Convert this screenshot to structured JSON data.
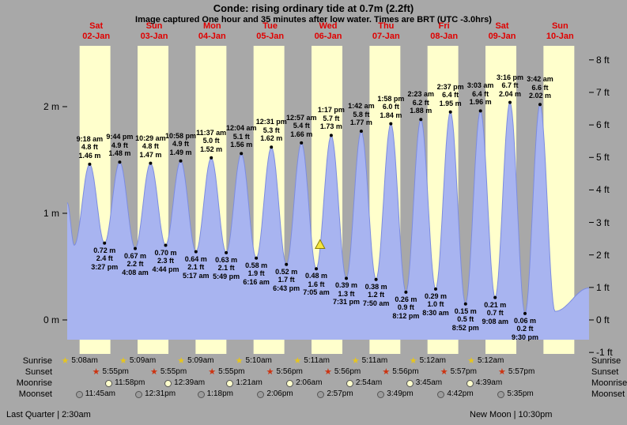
{
  "title": "Conde: rising ordinary tide at 0.7m (2.2ft)",
  "subtitle": "Image captured One hour and 35 minutes after low water. Times are BRT (UTC -3.0hrs)",
  "colors": {
    "background": "#a8a8a8",
    "night_band": "#a8a8a8",
    "day_band": "#ffffcc",
    "tide_fill": "#a8b4f0",
    "tide_outline": "#7c8ce0",
    "day_label_red": "#e00000",
    "marker_fill": "#f5e53e",
    "marker_outline": "#8a7d00"
  },
  "days": [
    {
      "name": "Sat",
      "date": "02-Jan"
    },
    {
      "name": "Sun",
      "date": "03-Jan"
    },
    {
      "name": "Mon",
      "date": "04-Jan"
    },
    {
      "name": "Tue",
      "date": "05-Jan"
    },
    {
      "name": "Wed",
      "date": "06-Jan"
    },
    {
      "name": "Thu",
      "date": "07-Jan"
    },
    {
      "name": "Fri",
      "date": "08-Jan"
    },
    {
      "name": "Sat",
      "date": "09-Jan"
    },
    {
      "name": "Sun",
      "date": "10-Jan"
    }
  ],
  "axes": {
    "left_ticks": [
      {
        "label": "2 m",
        "value": 2
      },
      {
        "label": "1 m",
        "value": 1
      },
      {
        "label": "0 m",
        "value": 0
      }
    ],
    "right_ticks": [
      {
        "label": "8 ft",
        "value": 8
      },
      {
        "label": "7 ft",
        "value": 7
      },
      {
        "label": "6 ft",
        "value": 6
      },
      {
        "label": "5 ft",
        "value": 5
      },
      {
        "label": "4 ft",
        "value": 4
      },
      {
        "label": "3 ft",
        "value": 3
      },
      {
        "label": "2 ft",
        "value": 2
      },
      {
        "label": "1 ft",
        "value": 1
      },
      {
        "label": "0 ft",
        "value": 0
      },
      {
        "label": "-1 ft",
        "value": -1
      }
    ]
  },
  "chart_data": {
    "type": "area",
    "y_unit_left": "m",
    "y_unit_right": "ft",
    "x_range_days": 9,
    "points": [
      {
        "day": 0,
        "time": "9:18 am",
        "ft": "4.8",
        "m": 1.46,
        "type": "high"
      },
      {
        "day": 0,
        "time": "3:27 pm",
        "ft": "2.4",
        "m": 0.72,
        "type": "low"
      },
      {
        "day": 0,
        "time": "9:44 pm",
        "ft": "4.9",
        "m": 1.48,
        "type": "high"
      },
      {
        "day": 1,
        "time": "4:08 am",
        "ft": "2.2",
        "m": 0.67,
        "type": "low"
      },
      {
        "day": 1,
        "time": "10:29 am",
        "ft": "4.8",
        "m": 1.47,
        "type": "high"
      },
      {
        "day": 1,
        "time": "4:44 pm",
        "ft": "2.3",
        "m": 0.7,
        "type": "low"
      },
      {
        "day": 1,
        "time": "10:58 pm",
        "ft": "4.9",
        "m": 1.49,
        "type": "high"
      },
      {
        "day": 2,
        "time": "5:17 am",
        "ft": "2.1",
        "m": 0.64,
        "type": "low"
      },
      {
        "day": 2,
        "time": "11:37 am",
        "ft": "5.0",
        "m": 1.52,
        "type": "high"
      },
      {
        "day": 2,
        "time": "5:49 pm",
        "ft": "2.1",
        "m": 0.63,
        "type": "low"
      },
      {
        "day": 3,
        "time": "12:04 am",
        "ft": "5.1",
        "m": 1.56,
        "type": "high"
      },
      {
        "day": 3,
        "time": "6:16 am",
        "ft": "1.9",
        "m": 0.58,
        "type": "low"
      },
      {
        "day": 3,
        "time": "12:31 pm",
        "ft": "5.3",
        "m": 1.62,
        "type": "high"
      },
      {
        "day": 3,
        "time": "6:43 pm",
        "ft": "1.7",
        "m": 0.52,
        "type": "low"
      },
      {
        "day": 4,
        "time": "12:57 am",
        "ft": "5.4",
        "m": 1.66,
        "type": "high"
      },
      {
        "day": 4,
        "time": "7:05 am",
        "ft": "1.6",
        "m": 0.48,
        "type": "low"
      },
      {
        "day": 4,
        "time": "1:17 pm",
        "ft": "5.7",
        "m": 1.73,
        "type": "high"
      },
      {
        "day": 4,
        "time": "7:31 pm",
        "ft": "1.3",
        "m": 0.39,
        "type": "low"
      },
      {
        "day": 5,
        "time": "1:42 am",
        "ft": "5.8",
        "m": 1.77,
        "type": "high"
      },
      {
        "day": 5,
        "time": "7:50 am",
        "ft": "1.2",
        "m": 0.38,
        "type": "low"
      },
      {
        "day": 5,
        "time": "1:58 pm",
        "ft": "6.0",
        "m": 1.84,
        "type": "high"
      },
      {
        "day": 5,
        "time": "8:12 pm",
        "ft": "0.9",
        "m": 0.26,
        "type": "low"
      },
      {
        "day": 6,
        "time": "2:23 am",
        "ft": "6.2",
        "m": 1.88,
        "type": "high"
      },
      {
        "day": 6,
        "time": "8:30 am",
        "ft": "1.0",
        "m": 0.29,
        "type": "low"
      },
      {
        "day": 6,
        "time": "2:37 pm",
        "ft": "6.4",
        "m": 1.95,
        "type": "high"
      },
      {
        "day": 6,
        "time": "8:52 pm",
        "ft": "0.5",
        "m": 0.15,
        "type": "low"
      },
      {
        "day": 7,
        "time": "3:03 am",
        "ft": "6.4",
        "m": 1.96,
        "type": "high"
      },
      {
        "day": 7,
        "time": "9:08 am",
        "ft": "0.7",
        "m": 0.21,
        "type": "low"
      },
      {
        "day": 7,
        "time": "3:16 pm",
        "ft": "6.7",
        "m": 2.04,
        "type": "high"
      },
      {
        "day": 7,
        "time": "9:30 pm",
        "ft": "0.2",
        "m": 0.06,
        "type": "low"
      },
      {
        "day": 8,
        "time": "3:42 am",
        "ft": "6.6",
        "m": 2.02,
        "type": "high"
      }
    ],
    "edge_points_estimated": [
      {
        "day": 0,
        "time": "12:00 am",
        "m": 1.1
      },
      {
        "day": 0,
        "time": "2:55 am",
        "m": 0.7
      },
      {
        "day": 8,
        "time": "9:55 am",
        "m": 0.08
      },
      {
        "day": 8,
        "time": "11:59 pm",
        "m": 0.3
      }
    ],
    "marker": {
      "day": 4,
      "time": "8:40 am",
      "m": 0.7
    }
  },
  "astro": {
    "rows": [
      {
        "key": "sunrise",
        "label": "Sunrise",
        "icon_type": "star",
        "color": "#e5c520",
        "entries": [
          {
            "day": 0,
            "time": "5:08am"
          },
          {
            "day": 1,
            "time": "5:09am"
          },
          {
            "day": 2,
            "time": "5:09am"
          },
          {
            "day": 3,
            "time": "5:10am"
          },
          {
            "day": 4,
            "time": "5:11am"
          },
          {
            "day": 5,
            "time": "5:11am"
          },
          {
            "day": 6,
            "time": "5:12am"
          },
          {
            "day": 7,
            "time": "5:12am"
          }
        ]
      },
      {
        "key": "sunset",
        "label": "Sunset",
        "icon_type": "star",
        "color": "#cc3311",
        "entries": [
          {
            "day": 0,
            "time": "5:55pm"
          },
          {
            "day": 1,
            "time": "5:55pm"
          },
          {
            "day": 2,
            "time": "5:55pm"
          },
          {
            "day": 3,
            "time": "5:56pm"
          },
          {
            "day": 4,
            "time": "5:56pm"
          },
          {
            "day": 5,
            "time": "5:56pm"
          },
          {
            "day": 6,
            "time": "5:57pm"
          },
          {
            "day": 7,
            "time": "5:57pm"
          }
        ]
      },
      {
        "key": "moonrise",
        "label": "Moonrise",
        "icon_type": "circle",
        "color": "#ffffcc",
        "entries": [
          {
            "day": 0,
            "time": "11:58pm"
          },
          {
            "day": 2,
            "time": "12:39am"
          },
          {
            "day": 3,
            "time": "1:21am"
          },
          {
            "day": 4,
            "time": "2:06am"
          },
          {
            "day": 5,
            "time": "2:54am"
          },
          {
            "day": 6,
            "time": "3:45am"
          },
          {
            "day": 7,
            "time": "4:39am"
          }
        ]
      },
      {
        "key": "moonset",
        "label": "Moonset",
        "icon_type": "circle",
        "color": "#9c9c9c",
        "entries": [
          {
            "day": 0,
            "time": "11:45am"
          },
          {
            "day": 1,
            "time": "12:31pm"
          },
          {
            "day": 2,
            "time": "1:18pm"
          },
          {
            "day": 3,
            "time": "2:06pm"
          },
          {
            "day": 4,
            "time": "2:57pm"
          },
          {
            "day": 5,
            "time": "3:49pm"
          },
          {
            "day": 6,
            "time": "4:42pm"
          },
          {
            "day": 7,
            "time": "5:35pm"
          }
        ]
      }
    ],
    "footer_left": "Last Quarter | 2:30am",
    "footer_right": "New Moon | 10:30pm"
  }
}
